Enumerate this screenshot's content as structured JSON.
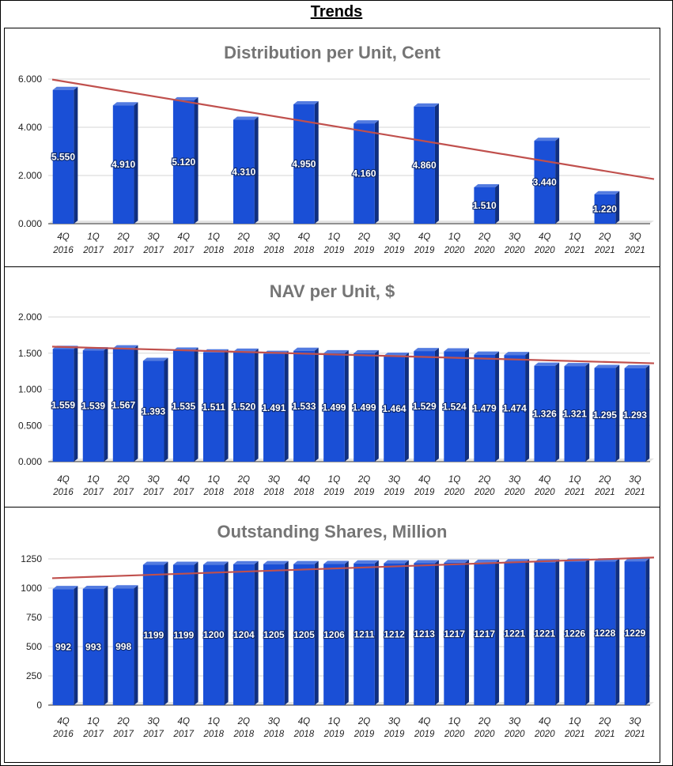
{
  "page": {
    "title": "Trends"
  },
  "chart_data": [
    {
      "type": "bar",
      "title": "Distribution per Unit, Cent",
      "categories": [
        "4Q 2016",
        "1Q 2017",
        "2Q 2017",
        "3Q 2017",
        "4Q 2017",
        "1Q 2018",
        "2Q 2018",
        "3Q 2018",
        "4Q 2018",
        "1Q 2019",
        "2Q 2019",
        "3Q 2019",
        "4Q 2019",
        "1Q 2020",
        "2Q 2020",
        "3Q 2020",
        "4Q 2020",
        "1Q 2021",
        "2Q 2021",
        "3Q 2021"
      ],
      "values": [
        5.55,
        null,
        4.91,
        null,
        5.12,
        null,
        4.31,
        null,
        4.95,
        null,
        4.16,
        null,
        4.86,
        null,
        1.51,
        null,
        3.44,
        null,
        1.22,
        null
      ],
      "data_labels": [
        "5.550",
        "",
        "4.910",
        "",
        "5.120",
        "",
        "4.310",
        "",
        "4.950",
        "",
        "4.160",
        "",
        "4.860",
        "",
        "1.510",
        "",
        "3.440",
        "",
        "1.220",
        ""
      ],
      "y_ticks": [
        "0.000",
        "2.000",
        "4.000",
        "6.000"
      ],
      "ylim": [
        0,
        6
      ],
      "trendline": {
        "start": 5.98,
        "end": 1.85,
        "color": "#c0504d"
      },
      "bar_color": "#1a4fd6"
    },
    {
      "type": "bar",
      "title": "NAV per Unit, $",
      "categories": [
        "4Q 2016",
        "1Q 2017",
        "2Q 2017",
        "3Q 2017",
        "4Q 2017",
        "1Q 2018",
        "2Q 2018",
        "3Q 2018",
        "4Q 2018",
        "1Q 2019",
        "2Q 2019",
        "3Q 2019",
        "4Q 2019",
        "1Q 2020",
        "2Q 2020",
        "3Q 2020",
        "4Q 2020",
        "1Q 2021",
        "2Q 2021",
        "3Q 2021"
      ],
      "values": [
        1.559,
        1.539,
        1.567,
        1.393,
        1.535,
        1.511,
        1.52,
        1.491,
        1.533,
        1.499,
        1.499,
        1.464,
        1.529,
        1.524,
        1.479,
        1.474,
        1.326,
        1.321,
        1.295,
        1.293
      ],
      "data_labels": [
        "1.559",
        "1.539",
        "1.567",
        "1.393",
        "1.535",
        "1.511",
        "1.520",
        "1.491",
        "1.533",
        "1.499",
        "1.499",
        "1.464",
        "1.529",
        "1.524",
        "1.479",
        "1.474",
        "1.326",
        "1.321",
        "1.295",
        "1.293"
      ],
      "y_ticks": [
        "0.000",
        "0.500",
        "1.000",
        "1.500",
        "2.000"
      ],
      "ylim": [
        0,
        2
      ],
      "trendline": {
        "start": 1.59,
        "end": 1.36,
        "color": "#c0504d"
      },
      "bar_color": "#1a4fd6"
    },
    {
      "type": "bar",
      "title": "Outstanding Shares, Million",
      "categories": [
        "4Q 2016",
        "1Q 2017",
        "2Q 2017",
        "3Q 2017",
        "4Q 2017",
        "1Q 2018",
        "2Q 2018",
        "3Q 2018",
        "4Q 2018",
        "1Q 2019",
        "2Q 2019",
        "3Q 2019",
        "4Q 2019",
        "1Q 2020",
        "2Q 2020",
        "3Q 2020",
        "4Q 2020",
        "1Q 2021",
        "2Q 2021",
        "3Q 2021"
      ],
      "values": [
        992,
        993,
        998,
        1199,
        1199,
        1200,
        1204,
        1205,
        1205,
        1206,
        1211,
        1212,
        1213,
        1217,
        1217,
        1221,
        1221,
        1226,
        1228,
        1229
      ],
      "data_labels": [
        "992",
        "993",
        "998",
        "1199",
        "1199",
        "1200",
        "1204",
        "1205",
        "1205",
        "1206",
        "1211",
        "1212",
        "1213",
        "1217",
        "1217",
        "1221",
        "1221",
        "1226",
        "1228",
        "1229"
      ],
      "y_ticks": [
        "0",
        "250",
        "500",
        "750",
        "1000",
        "1250"
      ],
      "ylim": [
        0,
        1250
      ],
      "trendline": {
        "start": 1085,
        "end": 1262,
        "color": "#c0504d"
      },
      "bar_color": "#1a4fd6"
    }
  ]
}
